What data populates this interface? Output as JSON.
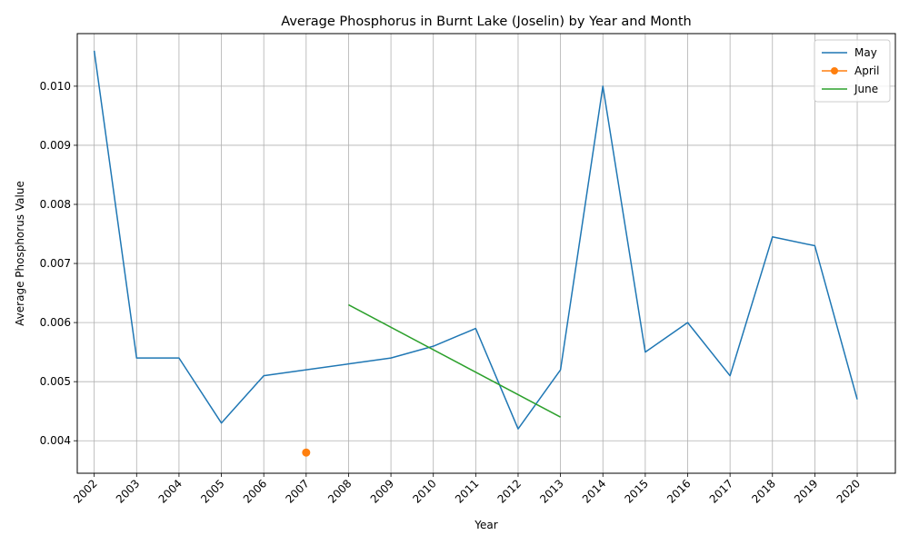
{
  "chart_data": {
    "type": "line",
    "title": "Average Phosphorus in Burnt Lake (Joselin) by Year and Month",
    "xlabel": "Year",
    "ylabel": "Average Phosphorus Value",
    "x_ticks": [
      "2002",
      "2003",
      "2004",
      "2005",
      "2006",
      "2007",
      "2008",
      "2009",
      "2010",
      "2011",
      "2012",
      "2013",
      "2014",
      "2015",
      "2016",
      "2017",
      "2018",
      "2019",
      "2020"
    ],
    "y_ticks": [
      "0.004",
      "0.005",
      "0.006",
      "0.007",
      "0.008",
      "0.009",
      "0.010"
    ],
    "xlim": [
      2001.6,
      2020.9
    ],
    "ylim": [
      0.00345,
      0.01089
    ],
    "grid": true,
    "legend_position": "top-right",
    "series": [
      {
        "name": "May",
        "color": "#1f77b4",
        "marker": "none",
        "points": [
          [
            2002,
            0.0106
          ],
          [
            2003,
            0.0054
          ],
          [
            2004,
            0.0054
          ],
          [
            2005,
            0.0043
          ],
          [
            2006,
            0.0051
          ],
          [
            2007,
            0.0052
          ],
          [
            2008,
            0.0053
          ],
          [
            2009,
            0.0054
          ],
          [
            2010,
            0.0056
          ],
          [
            2011,
            0.0059
          ],
          [
            2012,
            0.0042
          ],
          [
            2013,
            0.0052
          ],
          [
            2014,
            0.01
          ],
          [
            2015,
            0.0055
          ],
          [
            2016,
            0.006
          ],
          [
            2017,
            0.0051
          ],
          [
            2018,
            0.00745
          ],
          [
            2019,
            0.0073
          ],
          [
            2020,
            0.0047
          ]
        ]
      },
      {
        "name": "April",
        "color": "#ff7f0e",
        "marker": "circle",
        "points": [
          [
            2007,
            0.0038
          ]
        ]
      },
      {
        "name": "June",
        "color": "#2ca02c",
        "marker": "none",
        "points": [
          [
            2008,
            0.0063
          ],
          [
            2013,
            0.0044
          ]
        ]
      }
    ]
  }
}
